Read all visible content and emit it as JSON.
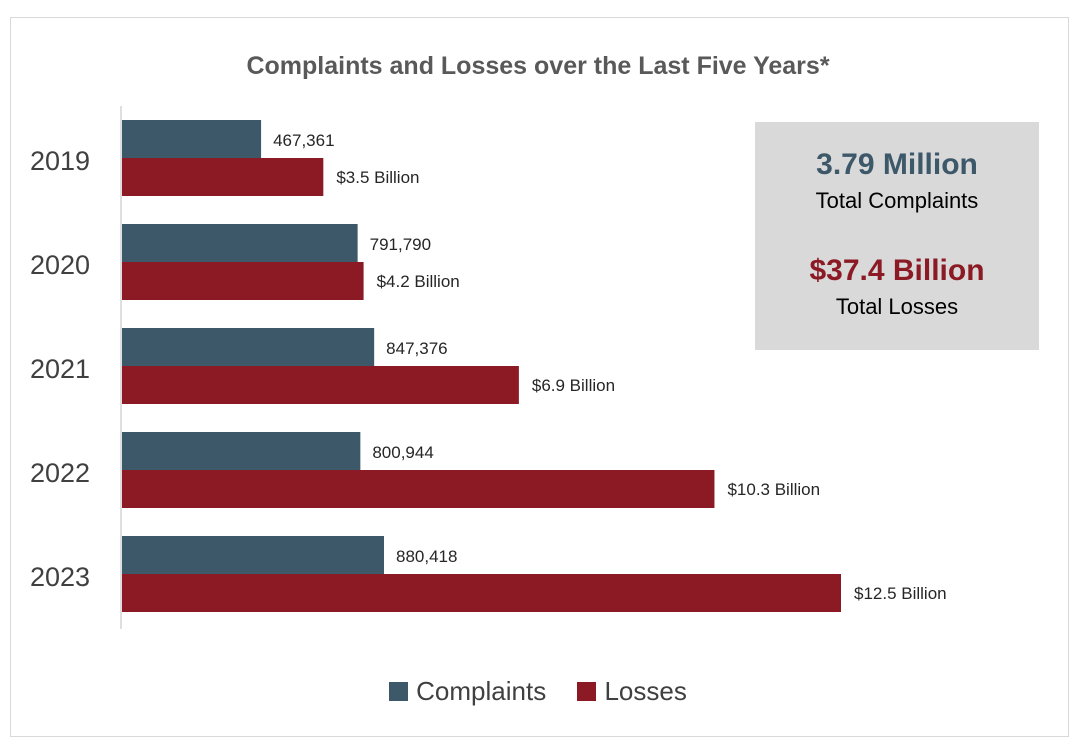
{
  "colors": {
    "complaints": "#3c5869",
    "losses": "#8b1a25",
    "axis": "#bfbfbf",
    "label": "#262626"
  },
  "summary": {
    "complaints_value": "3.79 Million",
    "complaints_label": "Total Complaints",
    "losses_value": "$37.4 Billion",
    "losses_label": "Total Losses"
  },
  "chart_data": {
    "type": "bar",
    "orientation": "horizontal",
    "title": "Complaints and Losses over the Last Five Years*",
    "categories": [
      "2019",
      "2020",
      "2021",
      "2022",
      "2023"
    ],
    "series": [
      {
        "name": "Complaints",
        "values": [
          467361,
          791790,
          847376,
          800944,
          880418
        ],
        "labels": [
          "467,361",
          "791,790",
          "847,376",
          "800,944",
          "880,418"
        ]
      },
      {
        "name": "Losses",
        "values": [
          3.5,
          4.2,
          6.9,
          10.3,
          12.5
        ],
        "labels": [
          "$3.5 Billion",
          "$4.2 Billion",
          "$6.9 Billion",
          "$10.3 Billion",
          "$12.5 Billion"
        ]
      }
    ],
    "legend": "bottom",
    "grid": false
  }
}
